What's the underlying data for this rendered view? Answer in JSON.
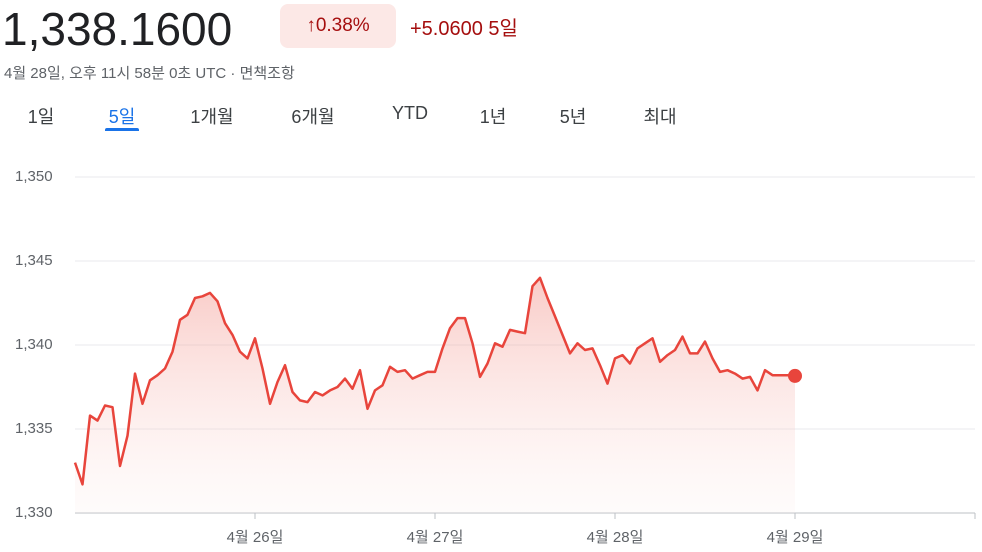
{
  "header": {
    "price": "1,338.1600",
    "change_percent": "0.38%",
    "change_value": "+5.0600",
    "period": "5일",
    "timestamp": "4월 28일, 오후 11시 58분 0초 UTC",
    "disclaimer": "면책조항"
  },
  "tabs": [
    "1일",
    "5일",
    "1개월",
    "6개월",
    "YTD",
    "1년",
    "5년",
    "최대"
  ],
  "chart_data": {
    "type": "line",
    "color": "#e8453c",
    "grid": true,
    "xlim": [
      0,
      120
    ],
    "xticks": [
      {
        "value": 24,
        "label": "4월 26일"
      },
      {
        "value": 48,
        "label": "4월 27일"
      },
      {
        "value": 72,
        "label": "4월 28일"
      },
      {
        "value": 96,
        "label": "4월 29일"
      }
    ],
    "ylim": [
      1330,
      1350
    ],
    "yticks": [
      {
        "value": 1330,
        "label": "1,330"
      },
      {
        "value": 1335,
        "label": "1,335"
      },
      {
        "value": 1340,
        "label": "1,340"
      },
      {
        "value": 1345,
        "label": "1,345"
      },
      {
        "value": 1350,
        "label": "1,350"
      }
    ],
    "values": [
      1333,
      1331.7,
      1335.8,
      1335.5,
      1336.4,
      1336.3,
      1332.8,
      1334.6,
      1338.3,
      1336.5,
      1337.9,
      1338.2,
      1338.6,
      1339.6,
      1341.5,
      1341.8,
      1342.8,
      1342.9,
      1343.1,
      1342.6,
      1341.3,
      1340.6,
      1339.6,
      1339.2,
      1340.4,
      1338.6,
      1336.5,
      1337.8,
      1338.8,
      1337.2,
      1336.7,
      1336.6,
      1337.2,
      1337,
      1337.3,
      1337.5,
      1338,
      1337.4,
      1338.5,
      1336.2,
      1337.3,
      1337.6,
      1338.7,
      1338.4,
      1338.5,
      1338,
      1338.2,
      1338.4,
      1338.4,
      1339.8,
      1341,
      1341.6,
      1341.6,
      1340.1,
      1338.1,
      1338.9,
      1340.1,
      1339.9,
      1340.9,
      1340.8,
      1340.7,
      1343.5,
      1344,
      1342.8,
      1341.7,
      1340.6,
      1339.5,
      1340.1,
      1339.7,
      1339.8,
      1338.8,
      1337.7,
      1339.2,
      1339.4,
      1338.9,
      1339.8,
      1340.1,
      1340.4,
      1339,
      1339.4,
      1339.7,
      1340.5,
      1339.5,
      1339.5,
      1340.2,
      1339.2,
      1338.4,
      1338.5,
      1338.3,
      1338,
      1338.1,
      1337.3,
      1338.5,
      1338.2,
      1338.2,
      1338.2,
      1338.16
    ]
  }
}
